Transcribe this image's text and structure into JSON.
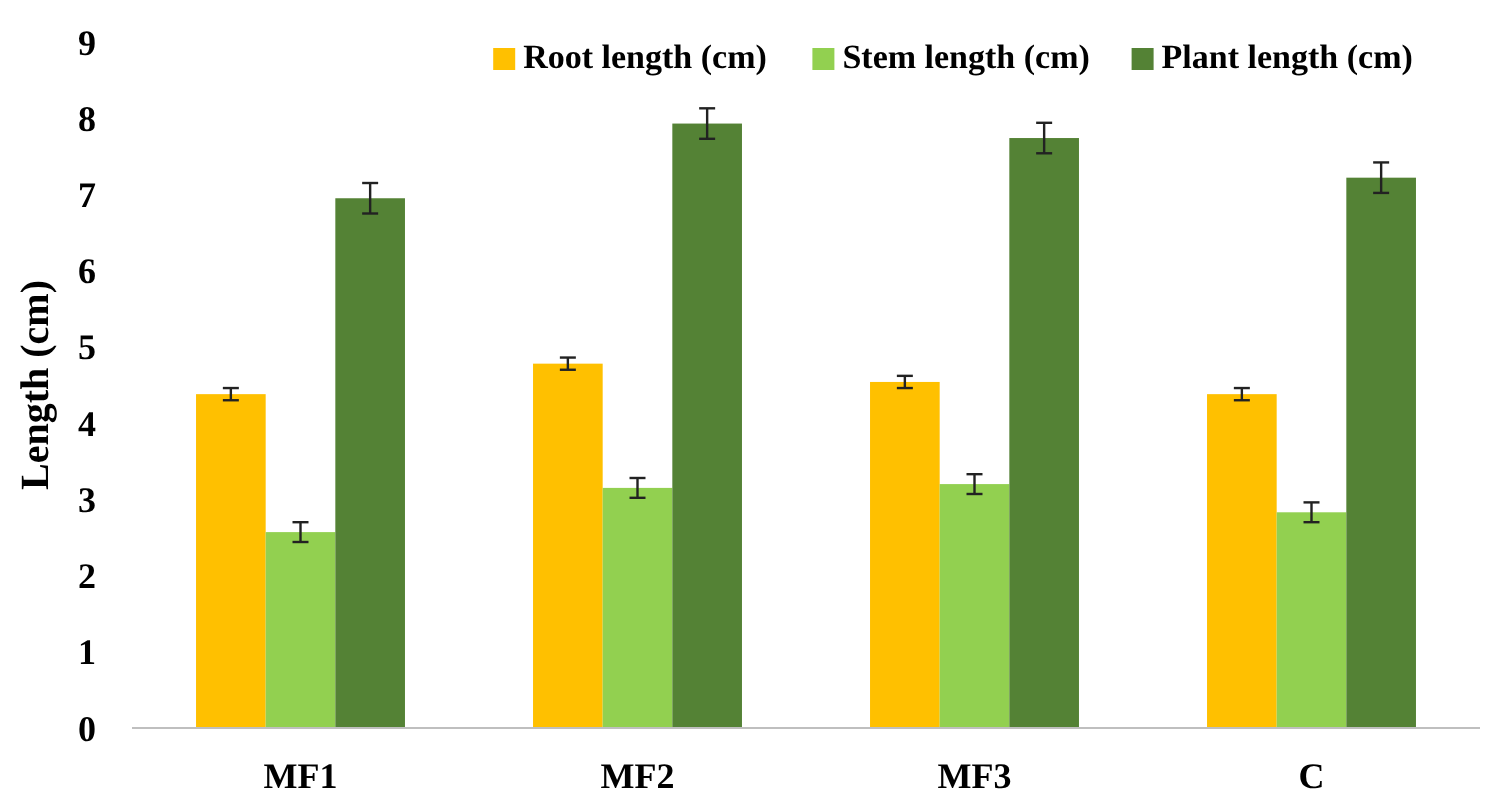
{
  "chart_data": {
    "type": "bar",
    "ylabel": "Length (cm)",
    "categories": [
      "MF1",
      "MF2",
      "MF3",
      "C"
    ],
    "series": [
      {
        "name": "Root length (cm)",
        "color": "#ffc000",
        "values": [
          4.38,
          4.78,
          4.54,
          4.38
        ],
        "errors": [
          0.08,
          0.08,
          0.08,
          0.08
        ]
      },
      {
        "name": "Stem length (cm)",
        "color": "#92d050",
        "values": [
          2.57,
          3.15,
          3.2,
          2.83
        ],
        "errors": [
          0.13,
          0.13,
          0.13,
          0.13
        ]
      },
      {
        "name": "Plant length (cm)",
        "color": "#548235",
        "values": [
          6.95,
          7.93,
          7.74,
          7.22
        ],
        "errors": [
          0.2,
          0.2,
          0.2,
          0.2
        ]
      }
    ],
    "ylim": [
      0,
      9
    ],
    "yticks": [
      0,
      1,
      2,
      3,
      4,
      5,
      6,
      7,
      8,
      9
    ],
    "grid": false,
    "legend": "top right"
  }
}
